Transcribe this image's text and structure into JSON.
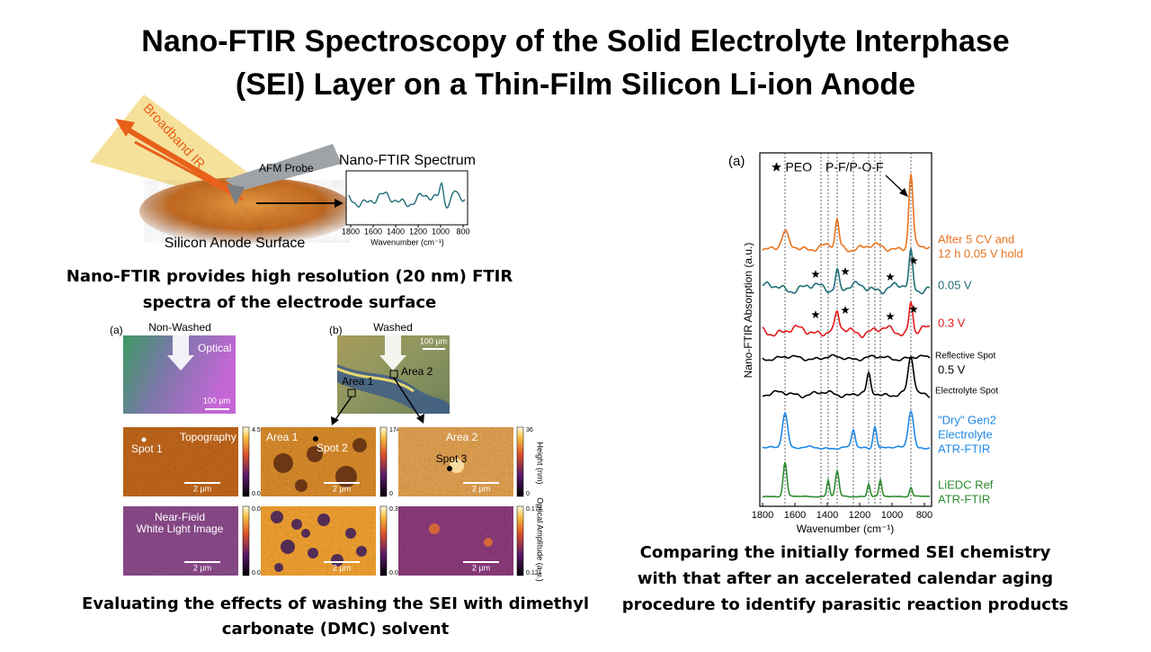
{
  "title": {
    "lines": [
      "Nano-FTIR Spectroscopy of the Solid Electrolyte Interphase",
      "(SEI) Layer on a Thin-Film Silicon Li-ion Anode"
    ]
  },
  "schematic": {
    "beam_label": "Broadband IR",
    "probe_label": "AFM Probe",
    "spectrum_title": "Nano-FTIR Spectrum",
    "surface_label": "Silicon Anode Surface",
    "x_ticks": [
      "1800",
      "1600",
      "1400",
      "1200",
      "1000",
      "800"
    ],
    "x_label": "Wavenumber (cm⁻¹)"
  },
  "caption_top": {
    "lines": [
      "Nano-FTIR provides high resolution (20 nm) FTIR",
      "spectra of the electrode surface"
    ]
  },
  "washing_figure": {
    "panel_a": {
      "label": "(a)",
      "title": "Non-Washed",
      "optical_label": "Optical",
      "optical_scale": "100 µm",
      "topography_label": "Topography",
      "spot_label": "Spot 1",
      "topography_scale": "2 µm",
      "topography_cbar": [
        "4.5",
        "0.0"
      ],
      "nearfield_label": [
        "Near-Field",
        "White Light Image"
      ],
      "nearfield_scale": "2 µm",
      "nearfield_cbar": [
        "0.093",
        "0.063"
      ]
    },
    "panel_b": {
      "label": "(b)",
      "title": "Washed",
      "optical_scale": "100 µm",
      "optical_area_labels": [
        "Area 1",
        "Area 2"
      ],
      "area1": {
        "label": "Area 1",
        "spot_label": "Spot 2",
        "topography_scale": "2 µm",
        "topography_cbar": [
          "174",
          "0"
        ],
        "nearfield_scale": "2 µm",
        "nearfield_cbar": [
          "0.318",
          "0.097"
        ]
      },
      "area2": {
        "label": "Area 2",
        "spot_label": "Spot 3",
        "topography_scale": "2 µm",
        "topography_cbar": [
          "36",
          "0"
        ],
        "nearfield_scale": "2 µm",
        "nearfield_cbar": [
          "0.177",
          "0.121"
        ]
      },
      "height_axis_label": "Height (nm)",
      "amplitude_axis_label": "Optical Amplitude (a.u.)"
    }
  },
  "caption_left": {
    "lines": [
      "Evaluating the effects of washing the SEI with dimethyl",
      "carbonate (DMC) solvent"
    ]
  },
  "spectra_figure": {
    "label": "(a)",
    "legend_peo": "★ PEO",
    "peak_label": "P-F/P-O-F",
    "y_label": "Nano-FTIR Absorption (a.u.)",
    "x_label": "Wavenumber (cm⁻¹)",
    "x_ticks": [
      "1800",
      "1600",
      "1400",
      "1200",
      "1000",
      "800"
    ],
    "traces": [
      {
        "lines": [
          "After 5 CV and",
          "12 h 0.05 V hold"
        ]
      },
      {
        "lines": [
          "0.05 V"
        ]
      },
      {
        "lines": [
          "0.3 V"
        ]
      },
      {
        "lines": [
          "Reflective Spot"
        ]
      },
      {
        "lines": [
          "0.5 V"
        ]
      },
      {
        "lines": [
          "Electrolyte Spot"
        ]
      },
      {
        "lines": [
          "\"Dry\" Gen2",
          "Electrolyte",
          "ATR-FTIR"
        ]
      },
      {
        "lines": [
          "LiEDC Ref",
          "ATR-FTIR"
        ]
      }
    ]
  },
  "caption_right": {
    "lines": [
      "Comparing the initially formed SEI chemistry",
      "with that after an accelerated calendar aging",
      "procedure to identify parasitic reaction products"
    ]
  }
}
